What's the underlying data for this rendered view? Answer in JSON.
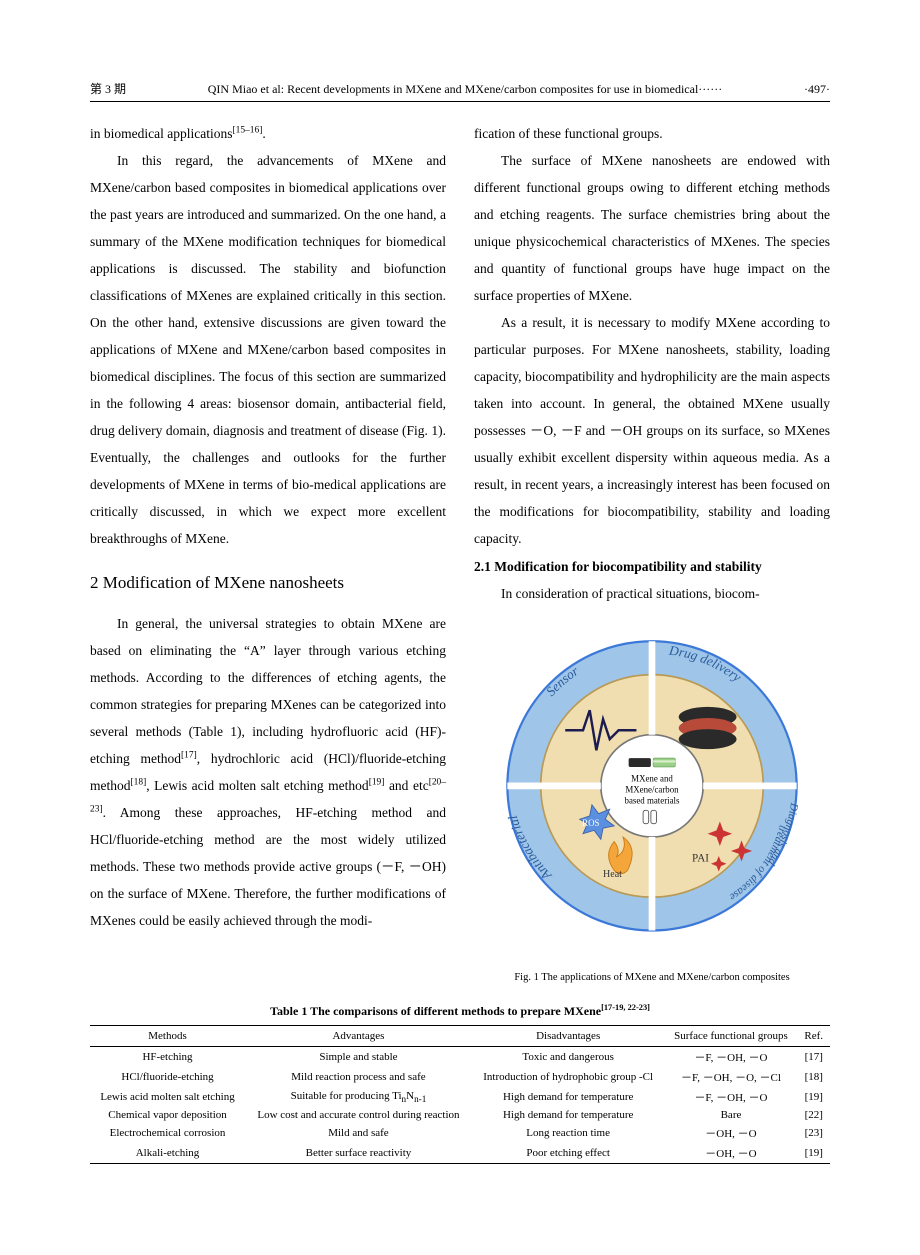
{
  "page": {
    "issue_label": "第 3 期",
    "running_head": "QIN Miao et al: Recent developments in MXene and MXene/carbon composites for use in biomedical······",
    "page_number": "·497·"
  },
  "left": {
    "p_intro_tail_html": "in biomedical applications<sup>[15–16]</sup>.",
    "p1": "In this regard, the advancements of MXene and MXene/carbon based composites in biomedical  applications over the past years are introduced and summarized. On the one hand, a summary of the MXene modification techniques for biomedical applications is discussed. The stability and biofunction  classifications of MXenes are explained critically in this  section. On the other hand, extensive discussions are given toward the applications of MXene and MXene/carbon based composites in biomedical disciplines. The focus of this section are summarized in the following 4 areas: biosensor domain, antibacterial field, drug delivery domain, diagnosis and treatment of disease (Fig. 1). Eventually, the challenges and outlooks for the further developments of MXene in terms of  bio-medical applications are critically discussed, in which we expect more excellent breakthroughs of MXene.",
    "h2": "2    Modification of MXene nanosheets",
    "p2_html": "In general, the universal strategies to obtain MXene are based on eliminating the “A” layer through various etching methods. According to the differences of etching agents, the common strategies for preparing MXenes can be categorized into several methods (Table 1), including hydrofluoric acid (HF)-etching method<sup>[17]</sup>, hydrochloric acid (HCl)/fluoride-etching method<sup>[18]</sup>, Lewis acid molten salt etching method<sup>[19]</sup> and etc<sup>[20–23]</sup>. Among these approaches, HF-etching method and HCl/fluoride-etching method are the most widely utilized methods. These two methods provide active groups (－F, －OH) on the surface of MXene. Therefore, the further modifications of MXenes could be easily achieved through the  modi-"
  },
  "right": {
    "p2_tail": "fication of these functional groups.",
    "p3": "The surface of MXene nanosheets are endowed with different functional groups owing to different etching methods and etching reagents. The surface chemistries bring about the unique physicochemical characteristics of MXenes. The species and quantity of functional groups have huge impact on the surface properties of MXene.",
    "p4": "As a result, it is necessary to modify MXene according to particular purposes. For MXene nanosheets, stability, loading capacity, biocompatibility and hydrophilicity are the main aspects taken into account. In general, the obtained MXene usually possesses －O, －F and －OH groups on its surface, so MXenes usually exhibit excellent dispersity within aqueous media. As a result, in recent years, a increasingly interest has been focused on the modifications for biocompatibility, stability and loading capacity.",
    "h3": "2.1    Modification for biocompatibility and stability",
    "p5": "In consideration of practical situations,  biocom-"
  },
  "figure": {
    "caption": "Fig. 1    The applications of MXene and MXene/carbon composites",
    "center_text_1": "MXene and",
    "center_text_2": "MXene/carbon",
    "center_text_3": "based materials",
    "q_tl": "Sensor",
    "q_tr": "Drug delivery",
    "q_bl": "Antibacterial",
    "q_br_1": "Diagnosis and",
    "q_br_2": "treatment of diseases",
    "pai": "PAI",
    "ros": "ROS",
    "heat": "Heat",
    "colors": {
      "outer_ring": "#9fc5e8",
      "outer_stroke": "#3c78d8",
      "inner_ring": "#f1deb0",
      "inner_stroke": "#b99a54",
      "center": "#ffffff",
      "text_blue": "#2a5b9c",
      "ros_fill": "#5b8fe0",
      "heat_fill": "#f4a63a",
      "drug_fill": "#b84a3a",
      "pai_red": "#cc3333",
      "wave": "#1c1c50"
    }
  },
  "table": {
    "title_html": "Table 1    The comparisons of different methods to prepare MXene<sup>[17-19, 22-23]</sup>",
    "columns": [
      "Methods",
      "Advantages",
      "Disadvantages",
      "Surface functional groups",
      "Ref."
    ],
    "rows": [
      [
        "HF-etching",
        "Simple and stable",
        "Toxic and dangerous",
        "－F, －OH, －O",
        "[17]"
      ],
      [
        "HCl/fluoride-etching",
        "Mild reaction process and safe",
        "Introduction of hydrophobic group -Cl",
        "－F, －OH, －O, －Cl",
        "[18]"
      ],
      [
        "Lewis acid molten salt etching",
        "Suitable for producing Ti<sub>n</sub>N<sub>n-1</sub>",
        "High demand for temperature",
        "－F, －OH, －O",
        "[19]"
      ],
      [
        "Chemical vapor deposition",
        "Low cost and accurate control during reaction",
        "High demand for temperature",
        "Bare",
        "[22]"
      ],
      [
        "Electrochemical corrosion",
        "Mild and safe",
        "Long reaction time",
        "－OH, －O",
        "[23]"
      ],
      [
        "Alkali-etching",
        "Better surface reactivity",
        "Poor etching effect",
        "－OH, －O",
        "[19]"
      ]
    ]
  }
}
